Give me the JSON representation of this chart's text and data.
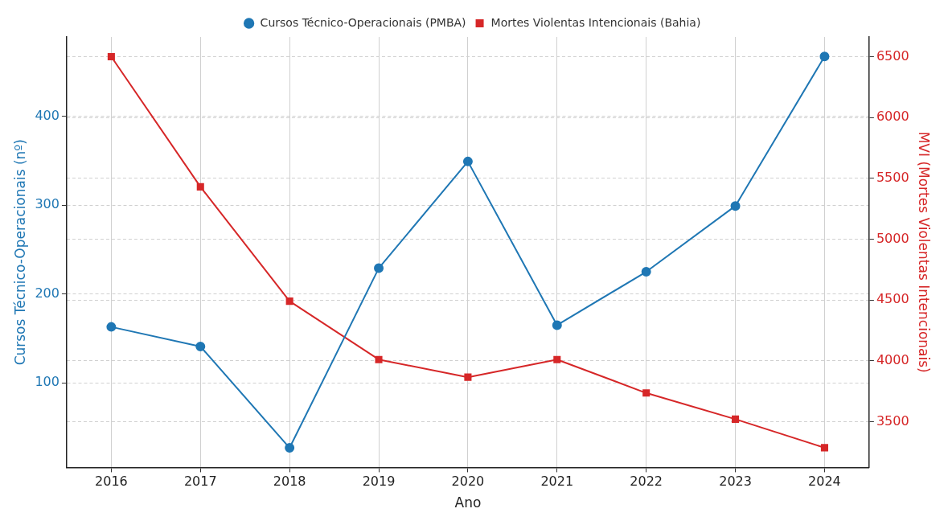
{
  "chart_data": {
    "type": "line",
    "xlabel": "Ano",
    "ylabel": "Cursos Técnico-Operacionais (nº)",
    "y2label": "MVI (Mortes Violentas Intencionais)",
    "categories": [
      "2016",
      "2017",
      "2018",
      "2019",
      "2020",
      "2021",
      "2022",
      "2023",
      "2024"
    ],
    "series": [
      {
        "name": "Cursos Técnico-Operacionais (PMBA)",
        "color": "#1f77b4",
        "marker": "circle",
        "values": [
          163,
          141,
          27,
          229,
          349,
          165,
          225,
          299,
          467
        ]
      },
      {
        "name": "Mortes Violentas Intencionais (Bahia)",
        "color": "#d62728",
        "marker": "square",
        "axis": "y2",
        "values": [
          6500,
          5430,
          4490,
          4010,
          3865,
          4010,
          3735,
          3520,
          3285
        ]
      }
    ],
    "ylim": [
      5,
      489
    ],
    "yticks": [
      100,
      200,
      300,
      400
    ],
    "y2lim": [
      3123,
      6662
    ],
    "y2ticks": [
      3500,
      4000,
      4500,
      5000,
      5500,
      6000,
      6500
    ],
    "grid": true,
    "legend": "top",
    "line_style": "solid"
  }
}
